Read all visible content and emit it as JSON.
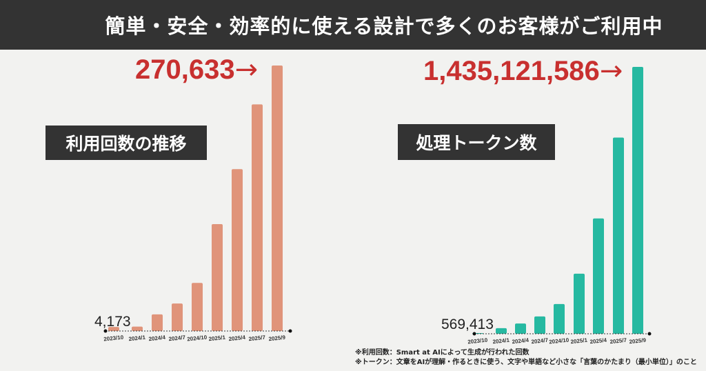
{
  "header": {
    "title": "簡単・安全・効率的に使える設計で多くのお客様がご利用中"
  },
  "colors": {
    "accent_red": "#c8302f",
    "left_bars": "#e0947a",
    "right_bars": "#26b9a1",
    "header_bg": "#333333"
  },
  "chart_data": [
    {
      "type": "bar",
      "title": "利用回数の推移",
      "categories": [
        "2023/10",
        "2024/1",
        "2024/4",
        "2024/7",
        "2024/10",
        "2025/1",
        "2025/4",
        "2025/7",
        "2025/9"
      ],
      "values": [
        4173,
        4500,
        17000,
        28000,
        49000,
        109000,
        165000,
        231000,
        270633
      ],
      "first_label": "4,173",
      "last_label": "270,633",
      "arrow": "→",
      "ylim": [
        0,
        270633
      ],
      "grid": false
    },
    {
      "type": "bar",
      "title": "処理トークン数",
      "categories": [
        "2023/10",
        "2024/1",
        "2024/4",
        "2024/7",
        "2024/10",
        "2025/1",
        "2025/4",
        "2025/7",
        "2025/9"
      ],
      "values": [
        569413,
        30000000,
        55000000,
        93000000,
        160000000,
        323000000,
        620000000,
        1055000000,
        1435121586
      ],
      "first_label": "569,413",
      "last_label": "1,435,121,586",
      "arrow": "→",
      "ylim": [
        0,
        1435121586
      ],
      "grid": false
    }
  ],
  "notes": [
    "※利用回数：Smart at AIによって生成が行われた回数",
    "※トークン：文章をAIが理解・作るときに使う、文字や単語など小さな「言葉のかたまり（最小単位）」のこと"
  ]
}
